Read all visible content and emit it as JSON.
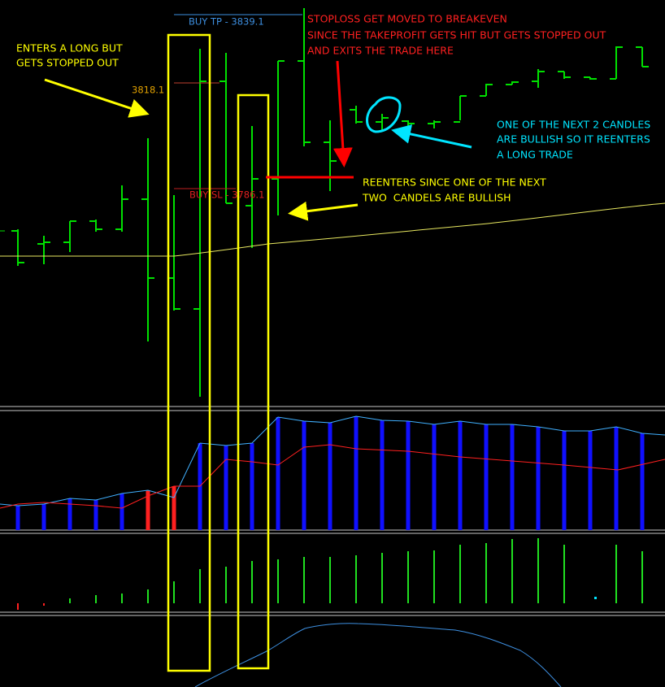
{
  "levels": {
    "take_profit": "BUY TP - 3839.1",
    "entry": "3818.1",
    "stop_loss": "BUY SL - 3786.1"
  },
  "annotations": [
    {
      "lines": [
        "ENTERS A LONG BUT",
        "GETS STOPPED OUT"
      ]
    },
    {
      "lines": [
        "STOPLOSS GET MOVED TO BREAKEVEN",
        "SINCE THE TAKEPROFIT GETS HIT BUT GETS STOPPED OUT",
        "AND EXITS THE TRADE HERE"
      ]
    },
    {
      "lines": [
        "ONE OF THE NEXT 2 CANDLES",
        "ARE BULLISH SO IT REENTERS",
        "A LONG TRADE"
      ]
    },
    {
      "lines": [
        "REENTERS SINCE ONE OF THE NEXT",
        "TWO  CANDELS ARE BULLISH"
      ]
    }
  ]
}
